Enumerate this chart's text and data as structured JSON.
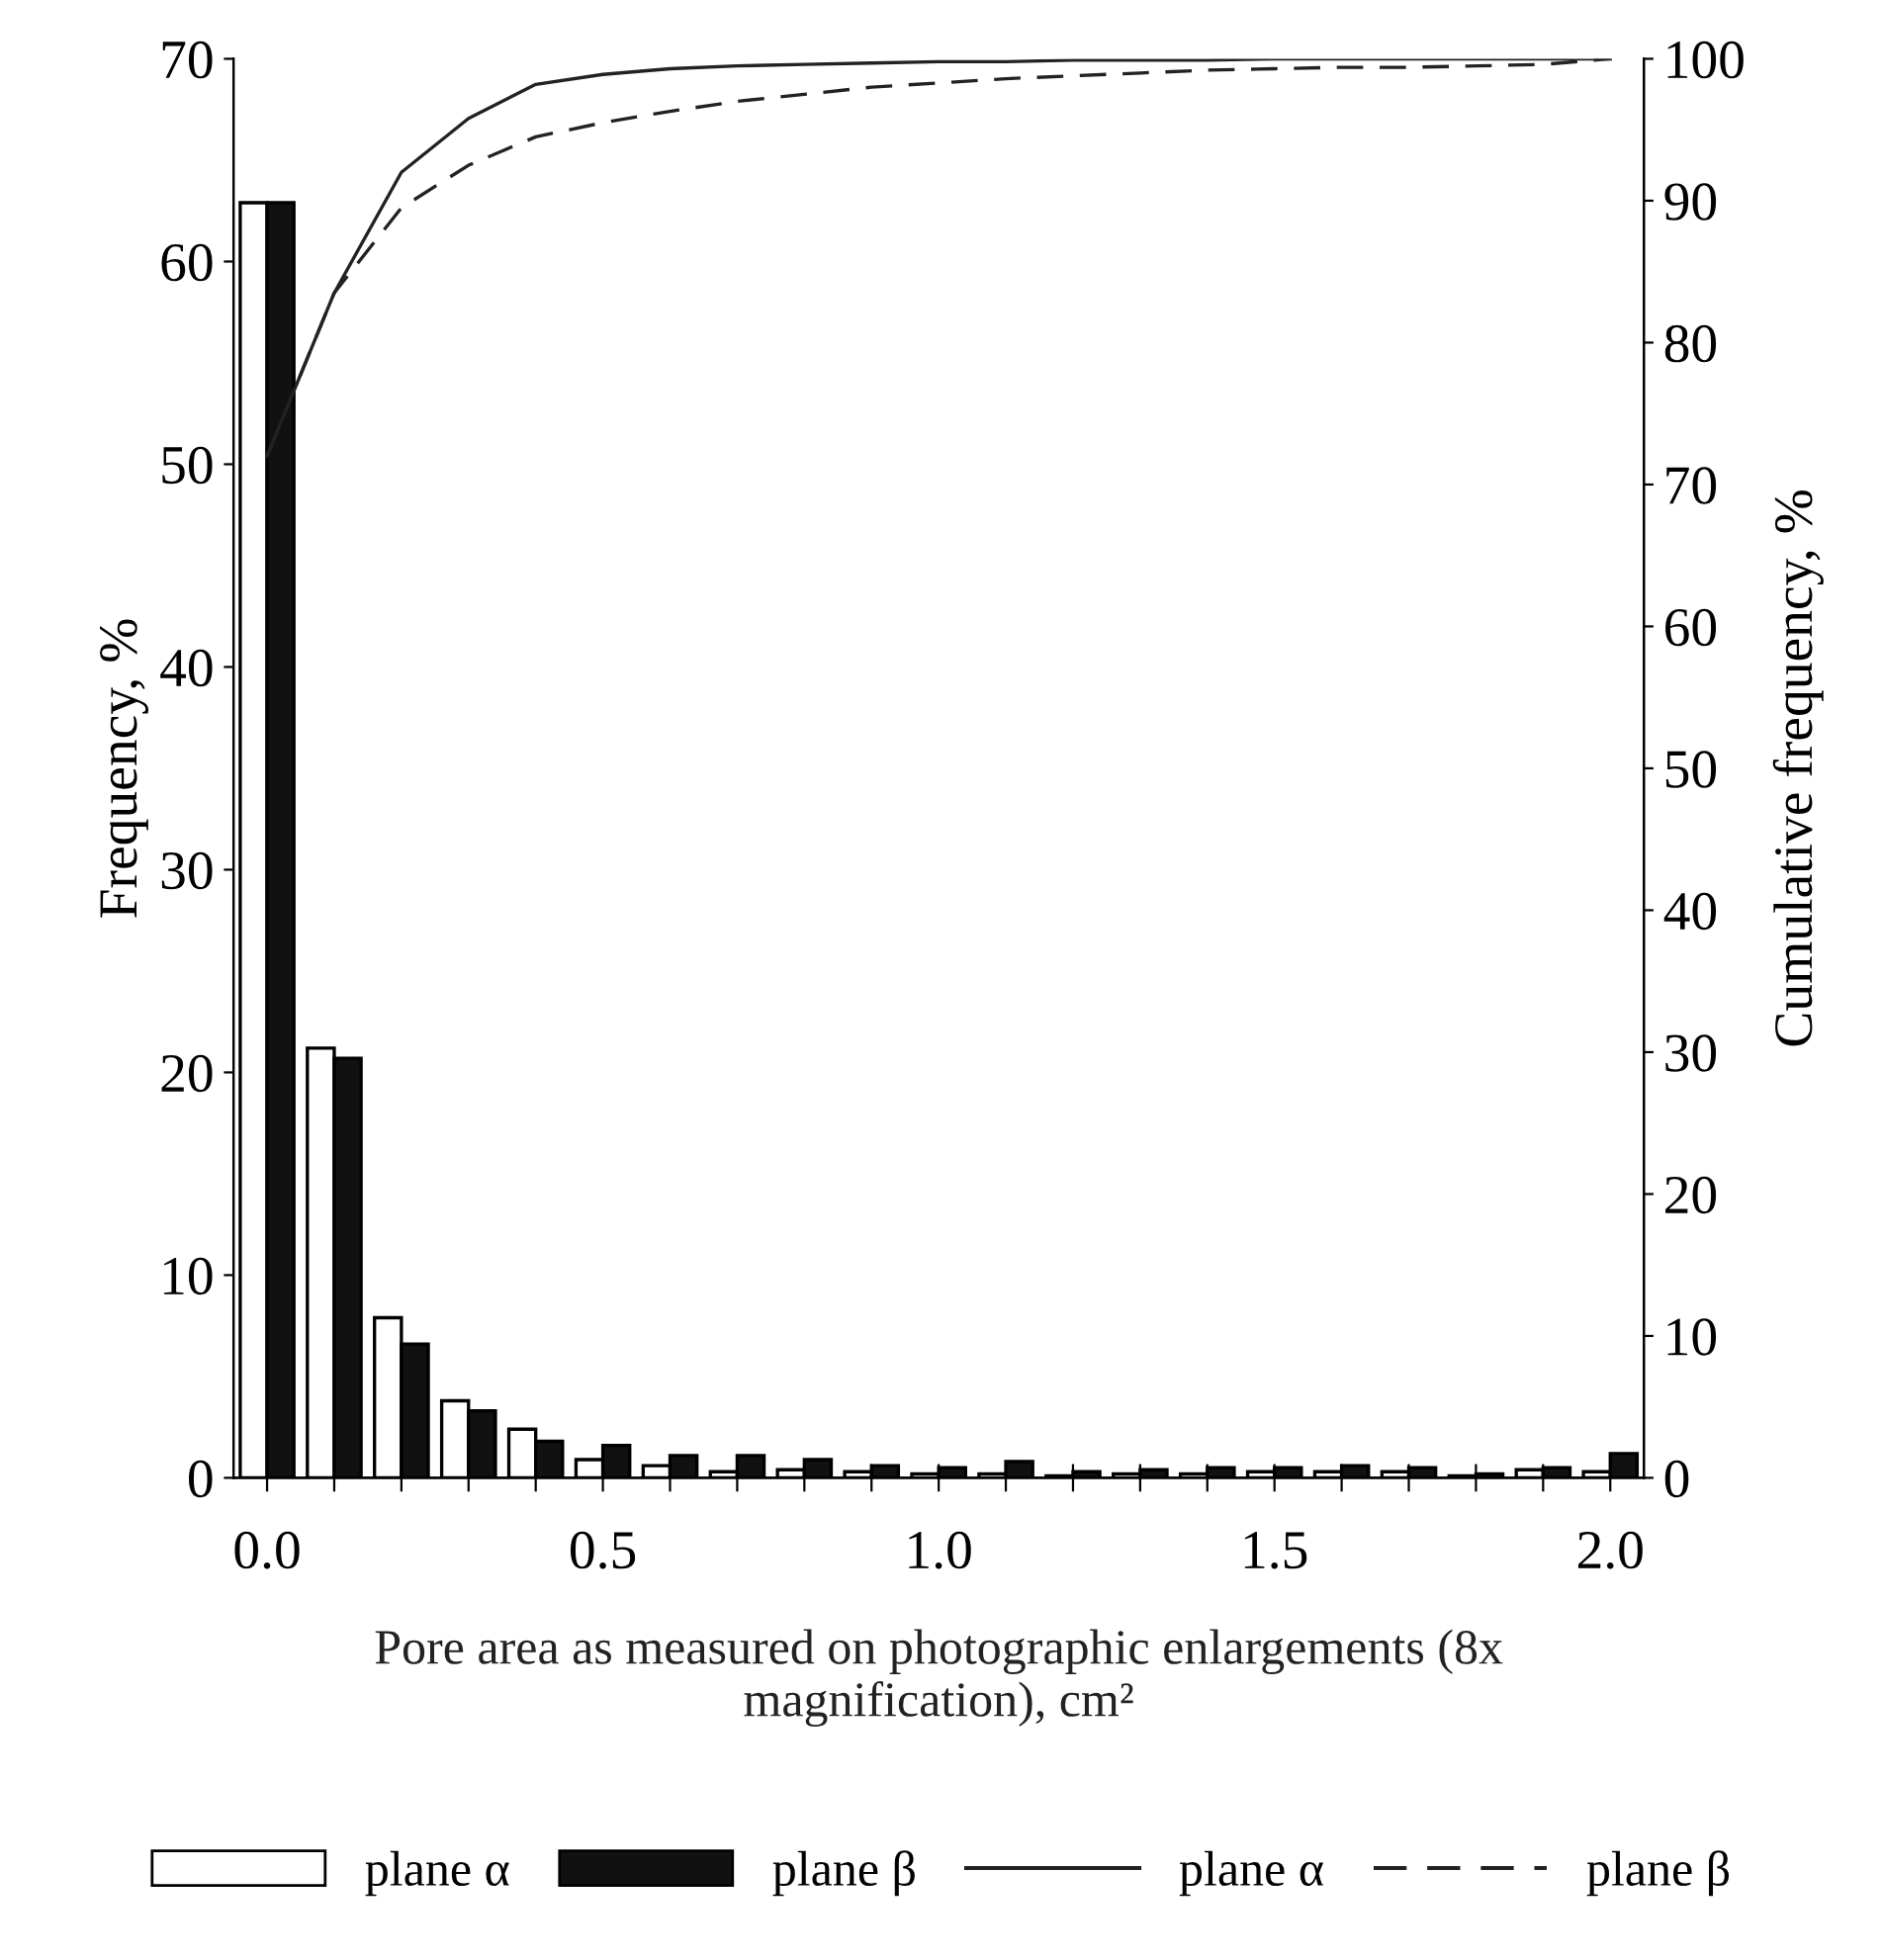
{
  "chart_data": {
    "type": "bar",
    "categories": [
      "0.0",
      null,
      null,
      null,
      null,
      "0.5",
      null,
      null,
      null,
      null,
      "1.0",
      null,
      null,
      null,
      null,
      "1.5",
      null,
      null,
      null,
      null,
      "2.0"
    ],
    "series": [
      {
        "name": "plane α",
        "color": "#ffffff",
        "values": [
          62.9,
          21.2,
          7.9,
          3.8,
          2.4,
          0.9,
          0.6,
          0.3,
          0.4,
          0.3,
          0.2,
          0.2,
          0.1,
          0.2,
          0.2,
          0.3,
          0.3,
          0.3,
          0.1,
          0.4,
          0.3
        ]
      },
      {
        "name": "plane β",
        "color": "#111111",
        "values": [
          62.9,
          20.7,
          6.6,
          3.3,
          1.8,
          1.6,
          1.1,
          1.1,
          0.9,
          0.6,
          0.5,
          0.8,
          0.3,
          0.4,
          0.5,
          0.5,
          0.6,
          0.5,
          0.2,
          0.5,
          1.2
        ]
      },
      {
        "name": "plane α",
        "type": "line",
        "axis": "y2",
        "color": "#222222",
        "line_style": "solid",
        "values": [
          72,
          83.5,
          92,
          95.8,
          98.2,
          98.9,
          99.3,
          99.5,
          99.6,
          99.7,
          99.8,
          99.8,
          99.9,
          99.9,
          99.9,
          100,
          100,
          100,
          100,
          100,
          100
        ]
      },
      {
        "name": "plane β",
        "type": "line",
        "axis": "y2",
        "color": "#222222",
        "line_style": "dashed",
        "values": [
          72,
          83.5,
          89.5,
          92.5,
          94.5,
          95.5,
          96.3,
          97,
          97.5,
          98,
          98.3,
          98.6,
          98.8,
          99,
          99.2,
          99.3,
          99.4,
          99.4,
          99.5,
          99.6,
          100
        ]
      }
    ],
    "xlabel": "Pore area as measured on photographic enlargements (8x\nmagnification), cm²",
    "ylabel": "Frequency, %",
    "y2label": "Cumulative frequency, %",
    "ylim": [
      0,
      70
    ],
    "yticks": [
      0,
      10,
      20,
      30,
      40,
      50,
      60,
      70
    ],
    "y2lim": [
      0,
      100
    ],
    "y2ticks": [
      0,
      10,
      20,
      30,
      40,
      50,
      60,
      70,
      80,
      90,
      100
    ],
    "grid": false,
    "legend": "bottom",
    "marker": "none"
  }
}
